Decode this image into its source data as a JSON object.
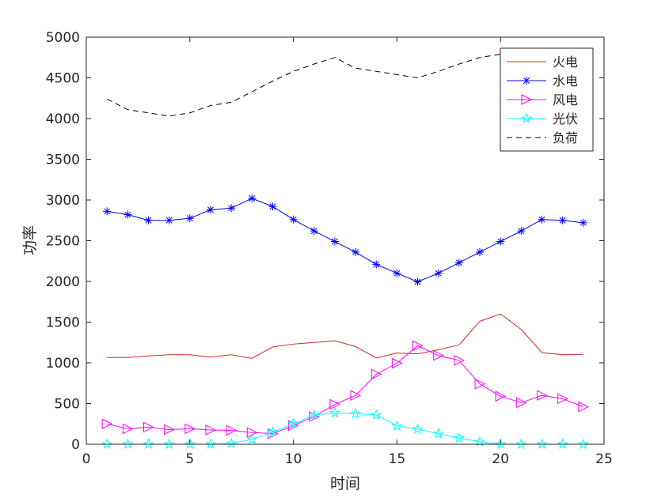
{
  "chart_data": {
    "type": "line",
    "xlabel": "时间",
    "ylabel": "功率",
    "xlim": [
      0,
      25
    ],
    "ylim": [
      0,
      5000
    ],
    "xticks": [
      0,
      5,
      10,
      15,
      20,
      25
    ],
    "yticks": [
      0,
      500,
      1000,
      1500,
      2000,
      2500,
      3000,
      3500,
      4000,
      4500,
      5000
    ],
    "grid": false,
    "legend_position": "top-right",
    "x": [
      1,
      2,
      3,
      4,
      5,
      6,
      7,
      8,
      9,
      10,
      11,
      12,
      13,
      14,
      15,
      16,
      17,
      18,
      19,
      20,
      21,
      22,
      23,
      24
    ],
    "series": [
      {
        "name": "火电",
        "color": "#d62728",
        "marker": "none",
        "dash": "solid",
        "values": [
          1065,
          1065,
          1085,
          1100,
          1100,
          1070,
          1100,
          1055,
          1195,
          1230,
          1250,
          1270,
          1200,
          1060,
          1120,
          1110,
          1160,
          1220,
          1510,
          1600,
          1410,
          1125,
          1100,
          1105
        ]
      },
      {
        "name": "水电",
        "color": "#0000ff",
        "marker": "asterisk",
        "dash": "solid",
        "values": [
          2860,
          2820,
          2750,
          2750,
          2775,
          2880,
          2900,
          3020,
          2920,
          2760,
          2620,
          2490,
          2360,
          2210,
          2100,
          1995,
          2100,
          2230,
          2360,
          2490,
          2620,
          2760,
          2750,
          2720
        ]
      },
      {
        "name": "风电",
        "color": "#ff00ff",
        "marker": "triangle-right",
        "dash": "solid",
        "values": [
          250,
          190,
          210,
          180,
          190,
          175,
          170,
          145,
          130,
          230,
          340,
          490,
          600,
          860,
          995,
          1210,
          1090,
          1030,
          740,
          590,
          510,
          600,
          560,
          460
        ]
      },
      {
        "name": "光伏",
        "color": "#00ffff",
        "marker": "pentagram",
        "dash": "solid",
        "values": [
          0,
          0,
          0,
          0,
          0,
          0,
          10,
          60,
          150,
          250,
          360,
          385,
          375,
          360,
          225,
          185,
          130,
          75,
          30,
          0,
          0,
          0,
          0,
          0
        ]
      },
      {
        "name": "负荷",
        "color": "#000000",
        "marker": "none",
        "dash": "dashed",
        "values": [
          4240,
          4110,
          4070,
          4030,
          4070,
          4160,
          4200,
          4330,
          4460,
          4580,
          4670,
          4750,
          4620,
          4580,
          4540,
          4500,
          4580,
          4670,
          4750,
          4790,
          4800,
          4810,
          4820,
          4830
        ]
      }
    ]
  }
}
